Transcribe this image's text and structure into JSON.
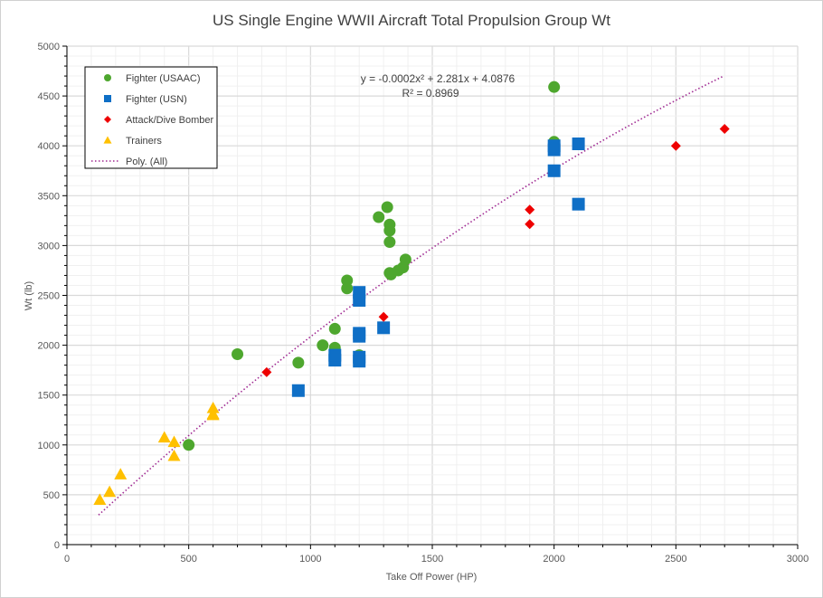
{
  "chart_data": {
    "type": "scatter",
    "title": "US Single Engine WWII Aircraft Total Propulsion Group Wt",
    "xlabel": "Take Off Power (HP)",
    "ylabel": "Wt (lb)",
    "xlim": [
      0,
      3000
    ],
    "ylim": [
      0,
      5000
    ],
    "xticks": [
      0,
      500,
      1000,
      1500,
      2000,
      2500,
      3000
    ],
    "yticks": [
      0,
      500,
      1000,
      1500,
      2000,
      2500,
      3000,
      3500,
      4000,
      4500,
      5000
    ],
    "grid": true,
    "legend_position": "top-left",
    "series": [
      {
        "name": "Fighter (USAAC)",
        "marker": "circle",
        "color": "#4ea72e",
        "points": [
          [
            500,
            1000
          ],
          [
            700,
            1910
          ],
          [
            950,
            1825
          ],
          [
            1050,
            2000
          ],
          [
            1100,
            1975
          ],
          [
            1100,
            2165
          ],
          [
            1150,
            2570
          ],
          [
            1150,
            2650
          ],
          [
            1200,
            1900
          ],
          [
            1280,
            3285
          ],
          [
            1315,
            3385
          ],
          [
            1325,
            3210
          ],
          [
            1325,
            3150
          ],
          [
            1325,
            3035
          ],
          [
            1325,
            2725
          ],
          [
            1330,
            2710
          ],
          [
            1360,
            2750
          ],
          [
            1380,
            2780
          ],
          [
            1390,
            2860
          ],
          [
            2000,
            4590
          ],
          [
            2000,
            4040
          ]
        ]
      },
      {
        "name": "Fighter (USN)",
        "marker": "square",
        "color": "#0f6fc6",
        "points": [
          [
            950,
            1545
          ],
          [
            1100,
            1850
          ],
          [
            1100,
            1900
          ],
          [
            1200,
            2530
          ],
          [
            1200,
            2450
          ],
          [
            1200,
            2120
          ],
          [
            1200,
            2090
          ],
          [
            1200,
            1880
          ],
          [
            1200,
            1840
          ],
          [
            1300,
            2175
          ],
          [
            2000,
            3750
          ],
          [
            2000,
            3960
          ],
          [
            2000,
            4000
          ],
          [
            2100,
            4020
          ],
          [
            2100,
            3415
          ]
        ]
      },
      {
        "name": "Attack/Dive Bomber",
        "marker": "diamond",
        "color": "#ee0000",
        "points": [
          [
            820,
            1730
          ],
          [
            1300,
            2285
          ],
          [
            1900,
            3360
          ],
          [
            1900,
            3215
          ],
          [
            2500,
            4000
          ],
          [
            2700,
            4170
          ]
        ]
      },
      {
        "name": "Trainers",
        "marker": "triangle",
        "color": "#ffc000",
        "points": [
          [
            135,
            450
          ],
          [
            175,
            530
          ],
          [
            220,
            705
          ],
          [
            400,
            1075
          ],
          [
            440,
            1030
          ],
          [
            440,
            890
          ],
          [
            600,
            1370
          ],
          [
            600,
            1310
          ],
          [
            600,
            1300
          ]
        ]
      }
    ],
    "trendline": {
      "name": "Poly. (All)",
      "color": "#a02b93",
      "coefficients": [
        -0.0002,
        2.281,
        4.0876
      ],
      "x_range": [
        130,
        2700
      ],
      "equation": "y = -0.0002x² + 2.281x + 4.0876",
      "r2_text": "R² = 0.8969"
    }
  }
}
